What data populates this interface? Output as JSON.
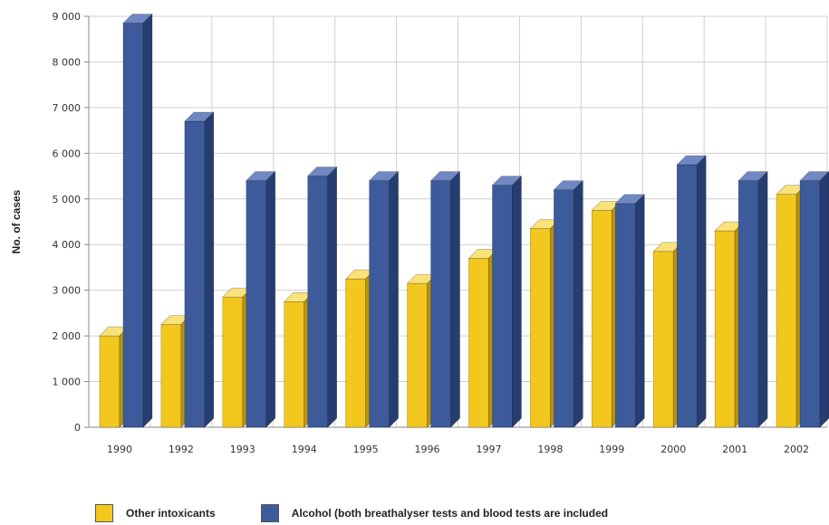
{
  "chart_data": {
    "type": "bar",
    "categories": [
      "1990",
      "1992",
      "1993",
      "1994",
      "1995",
      "1996",
      "1997",
      "1998",
      "1999",
      "2000",
      "2001",
      "2002"
    ],
    "series": [
      {
        "name": "Other intoxicants",
        "values": [
          2000,
          2250,
          2850,
          2750,
          3250,
          3150,
          3700,
          4350,
          4750,
          3850,
          4300,
          5100
        ]
      },
      {
        "name": "Alcohol (both breathalyser tests and blood tests are included",
        "values": [
          8850,
          6700,
          5400,
          5500,
          5400,
          5400,
          5300,
          5200,
          4900,
          5750,
          5400,
          5400
        ]
      }
    ],
    "ylabel": "No. of cases",
    "xlabel": "",
    "ylim": [
      0,
      9000
    ],
    "yticks": [
      "0",
      "1 000",
      "2 000",
      "3 000",
      "4 000",
      "5 000",
      "6 000",
      "7 000",
      "8 000",
      "9 000"
    ],
    "ytick_values": [
      0,
      1000,
      2000,
      3000,
      4000,
      5000,
      6000,
      7000,
      8000,
      9000
    ],
    "grid": true,
    "style": "3d",
    "legend_position": "bottom",
    "colors": {
      "series": [
        "#f2c81e",
        "#3d5a9a"
      ],
      "series_side": [
        "#b8940c",
        "#253d70"
      ],
      "series_top": [
        "#fae27a",
        "#6f88c2"
      ],
      "grid": "#d0d0d0"
    }
  }
}
